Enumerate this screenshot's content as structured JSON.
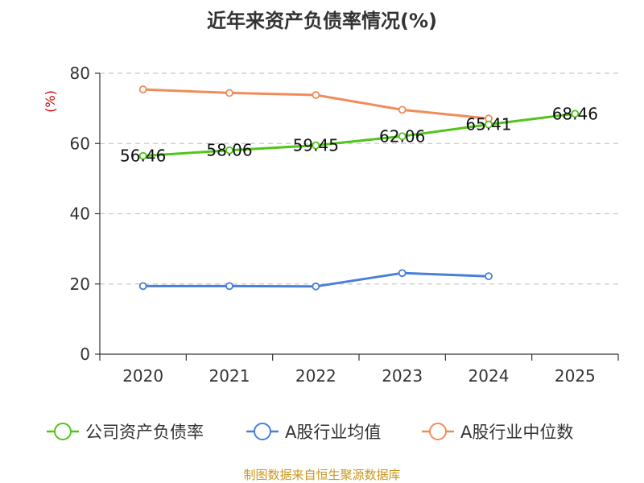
{
  "chart_data": {
    "type": "line",
    "title": "近年来资产负债率情况(%)",
    "ylabel": "(%)",
    "xlabel": "",
    "ylim": [
      0,
      80
    ],
    "yticks": [
      0,
      20,
      40,
      60,
      80
    ],
    "grid": true,
    "categories": [
      "2020",
      "2021",
      "2022",
      "2023",
      "2024",
      "2025"
    ],
    "series": [
      {
        "name": "公司资产负债率",
        "color": "#52c41a",
        "values": [
          56.46,
          58.06,
          59.45,
          62.06,
          65.41,
          68.46
        ],
        "labels": [
          "56.46",
          "58.06",
          "59.45",
          "62.06",
          "65.41",
          "68.46"
        ]
      },
      {
        "name": "A股行业均值",
        "color": "#4a7fd8",
        "values": [
          19.4,
          19.4,
          19.3,
          23.1,
          22.2,
          null
        ]
      },
      {
        "name": "A股行业中位数",
        "color": "#f08c5a",
        "values": [
          75.4,
          74.4,
          73.8,
          69.6,
          67.1,
          null
        ]
      }
    ],
    "legend_position": "bottom"
  },
  "footer": {
    "source": "制图数据来自恒生聚源数据库"
  }
}
